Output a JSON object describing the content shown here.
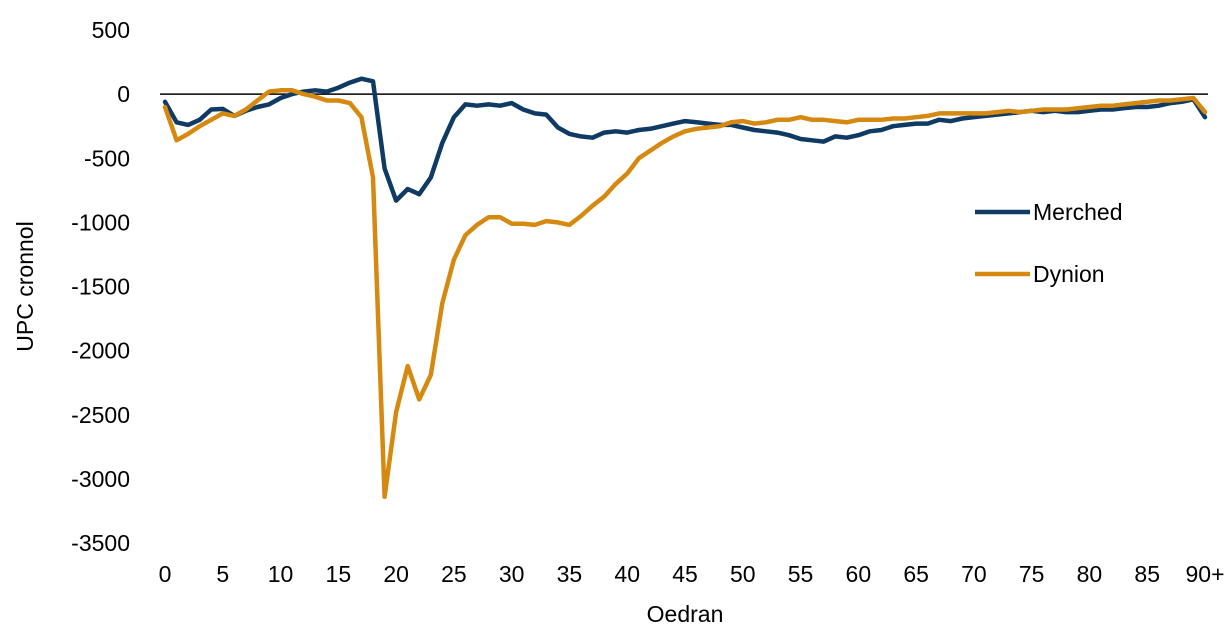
{
  "chart_data": {
    "type": "line",
    "xlabel": "Oedran",
    "ylabel": "UPC cronnol",
    "ylim": [
      -3500,
      500
    ],
    "xlim": [
      0,
      90
    ],
    "yticks": [
      500,
      0,
      -500,
      -1000,
      -1500,
      -2000,
      -2500,
      -3000,
      -3500
    ],
    "xticks": [
      0,
      5,
      10,
      15,
      20,
      25,
      30,
      35,
      40,
      45,
      50,
      55,
      60,
      65,
      70,
      75,
      80,
      85,
      90
    ],
    "xtick_labels": [
      "0",
      "5",
      "10",
      "15",
      "20",
      "25",
      "30",
      "35",
      "40",
      "45",
      "50",
      "55",
      "60",
      "65",
      "70",
      "75",
      "80",
      "85",
      "90+"
    ],
    "grid": false,
    "zero_line": true,
    "legend_position": "right",
    "series": [
      {
        "name": "Merched",
        "color": "#0e3a63",
        "x": [
          0,
          1,
          2,
          3,
          4,
          5,
          6,
          7,
          8,
          9,
          10,
          11,
          12,
          13,
          14,
          15,
          16,
          17,
          18,
          19,
          20,
          21,
          22,
          23,
          24,
          25,
          26,
          27,
          28,
          29,
          30,
          31,
          32,
          33,
          34,
          35,
          36,
          37,
          38,
          39,
          40,
          41,
          42,
          43,
          44,
          45,
          46,
          47,
          48,
          49,
          50,
          51,
          52,
          53,
          54,
          55,
          56,
          57,
          58,
          59,
          60,
          61,
          62,
          63,
          64,
          65,
          66,
          67,
          68,
          69,
          70,
          71,
          72,
          73,
          74,
          75,
          76,
          77,
          78,
          79,
          80,
          81,
          82,
          83,
          84,
          85,
          86,
          87,
          88,
          89,
          90
        ],
        "y": [
          -60,
          -220,
          -240,
          -200,
          -120,
          -115,
          -170,
          -130,
          -100,
          -80,
          -30,
          0,
          20,
          30,
          20,
          50,
          90,
          120,
          100,
          -580,
          -830,
          -740,
          -780,
          -650,
          -380,
          -180,
          -80,
          -90,
          -80,
          -90,
          -70,
          -120,
          -150,
          -160,
          -260,
          -310,
          -330,
          -340,
          -300,
          -290,
          -300,
          -280,
          -270,
          -250,
          -230,
          -210,
          -220,
          -230,
          -240,
          -240,
          -260,
          -280,
          -290,
          -300,
          -320,
          -350,
          -360,
          -370,
          -330,
          -340,
          -320,
          -290,
          -280,
          -250,
          -240,
          -230,
          -230,
          -200,
          -210,
          -190,
          -180,
          -170,
          -160,
          -150,
          -140,
          -130,
          -140,
          -130,
          -140,
          -140,
          -130,
          -120,
          -120,
          -110,
          -100,
          -100,
          -90,
          -70,
          -60,
          -40,
          -180
        ]
      },
      {
        "name": "Dynion",
        "color": "#d68910",
        "x": [
          0,
          1,
          2,
          3,
          4,
          5,
          6,
          7,
          8,
          9,
          10,
          11,
          12,
          13,
          14,
          15,
          16,
          17,
          18,
          19,
          20,
          21,
          22,
          23,
          24,
          25,
          26,
          27,
          28,
          29,
          30,
          31,
          32,
          33,
          34,
          35,
          36,
          37,
          38,
          39,
          40,
          41,
          42,
          43,
          44,
          45,
          46,
          47,
          48,
          49,
          50,
          51,
          52,
          53,
          54,
          55,
          56,
          57,
          58,
          59,
          60,
          61,
          62,
          63,
          64,
          65,
          66,
          67,
          68,
          69,
          70,
          71,
          72,
          73,
          74,
          75,
          76,
          77,
          78,
          79,
          80,
          81,
          82,
          83,
          84,
          85,
          86,
          87,
          88,
          89,
          90
        ],
        "y": [
          -100,
          -360,
          -310,
          -250,
          -200,
          -150,
          -170,
          -120,
          -50,
          20,
          30,
          30,
          0,
          -20,
          -50,
          -50,
          -70,
          -180,
          -650,
          -3140,
          -2480,
          -2120,
          -2380,
          -2190,
          -1630,
          -1290,
          -1100,
          -1020,
          -960,
          -960,
          -1010,
          -1010,
          -1020,
          -990,
          -1000,
          -1020,
          -950,
          -870,
          -800,
          -700,
          -620,
          -500,
          -440,
          -380,
          -330,
          -290,
          -270,
          -260,
          -250,
          -220,
          -210,
          -230,
          -220,
          -200,
          -200,
          -180,
          -200,
          -200,
          -210,
          -220,
          -200,
          -200,
          -200,
          -190,
          -190,
          -180,
          -170,
          -150,
          -150,
          -150,
          -150,
          -150,
          -140,
          -130,
          -140,
          -130,
          -120,
          -120,
          -120,
          -110,
          -100,
          -90,
          -90,
          -80,
          -70,
          -60,
          -50,
          -50,
          -40,
          -30,
          -140
        ]
      }
    ]
  }
}
